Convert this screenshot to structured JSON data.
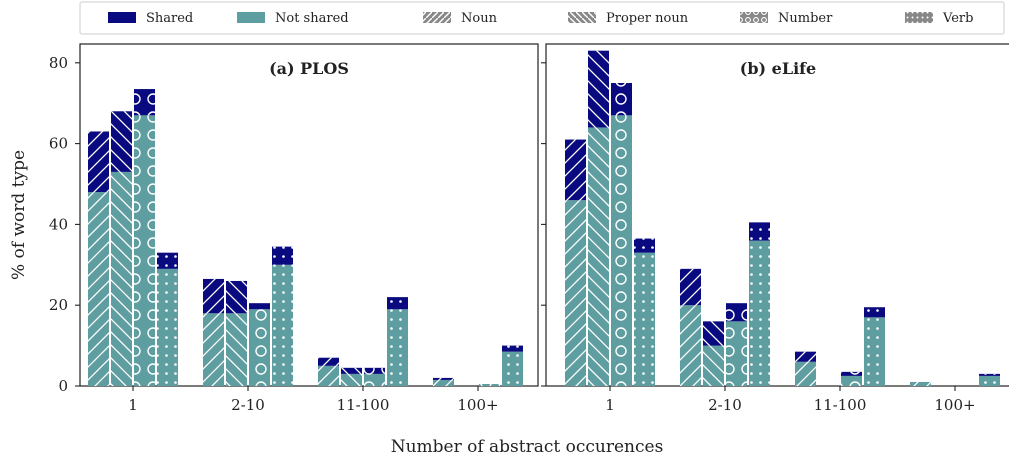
{
  "chart_data": {
    "type": "bar",
    "stacked": true,
    "xlabel": "Number of abstract occurences",
    "ylabel": "% of word type",
    "ylim": [
      0,
      83
    ],
    "yticks": [
      0,
      20,
      40,
      60,
      80
    ],
    "categories": [
      "1",
      "2-10",
      "11-100",
      "100+"
    ],
    "word_types": [
      {
        "name": "Noun",
        "pattern": "hatch-fwd"
      },
      {
        "name": "Proper noun",
        "pattern": "hatch-back"
      },
      {
        "name": "Number",
        "pattern": "circles"
      },
      {
        "name": "Verb",
        "pattern": "dots"
      }
    ],
    "stack_components": [
      {
        "name": "Shared",
        "color": "#0a0a80"
      },
      {
        "name": "Not shared",
        "color": "#5f9ea0"
      }
    ],
    "legend_placement": "top",
    "grid": false,
    "panels": [
      {
        "title": "(a) PLOS",
        "series": [
          {
            "name": "Noun",
            "not_shared": [
              48,
              18,
              5,
              1.5
            ],
            "total": [
              63,
              26.5,
              7,
              2
            ]
          },
          {
            "name": "Proper noun",
            "not_shared": [
              53,
              18,
              3,
              0
            ],
            "total": [
              68,
              26,
              4.5,
              0
            ]
          },
          {
            "name": "Number",
            "not_shared": [
              67,
              19,
              3,
              0.5
            ],
            "total": [
              73.5,
              20.5,
              4.5,
              0.5
            ]
          },
          {
            "name": "Verb",
            "not_shared": [
              29,
              30,
              19,
              8.5
            ],
            "total": [
              33,
              34.5,
              22,
              10
            ]
          }
        ]
      },
      {
        "title": "(b) eLife",
        "series": [
          {
            "name": "Noun",
            "not_shared": [
              46,
              20,
              6,
              1
            ],
            "total": [
              61,
              29,
              8.5,
              1
            ]
          },
          {
            "name": "Proper noun",
            "not_shared": [
              64,
              10,
              0,
              0
            ],
            "total": [
              83,
              16,
              0,
              0
            ]
          },
          {
            "name": "Number",
            "not_shared": [
              67,
              16,
              2.5,
              0
            ],
            "total": [
              75,
              20.5,
              3.5,
              0
            ]
          },
          {
            "name": "Verb",
            "not_shared": [
              33,
              36,
              17,
              2.5
            ],
            "total": [
              36.5,
              40.5,
              19.5,
              3
            ]
          }
        ]
      }
    ]
  }
}
